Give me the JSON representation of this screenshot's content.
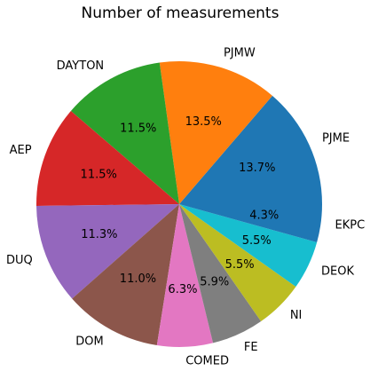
{
  "chart_data": {
    "type": "pie",
    "title": "Number of measurements",
    "labels": [
      "PJME",
      "PJMW",
      "DAYTON",
      "AEP",
      "DUQ",
      "DOM",
      "COMED",
      "FE",
      "NI",
      "DEOK",
      "EKPC"
    ],
    "values": [
      13.7,
      13.5,
      11.5,
      11.5,
      11.3,
      11.0,
      6.3,
      5.9,
      5.5,
      5.5,
      4.3
    ],
    "percent_labels": [
      "13.7%",
      "13.5%",
      "11.5%",
      "11.5%",
      "11.3%",
      "11.0%",
      "6.3%",
      "5.9%",
      "5.5%",
      "5.5%",
      "4.3%"
    ],
    "colors": [
      "#1f77b4",
      "#ff7f0e",
      "#2ca02c",
      "#d62728",
      "#9467bd",
      "#8c564b",
      "#e377c2",
      "#7f7f7f",
      "#bcbd22",
      "#17becf",
      "#1f77b4"
    ],
    "start_angle_deg": 0,
    "direction": "counterclockwise",
    "legend": "none"
  }
}
